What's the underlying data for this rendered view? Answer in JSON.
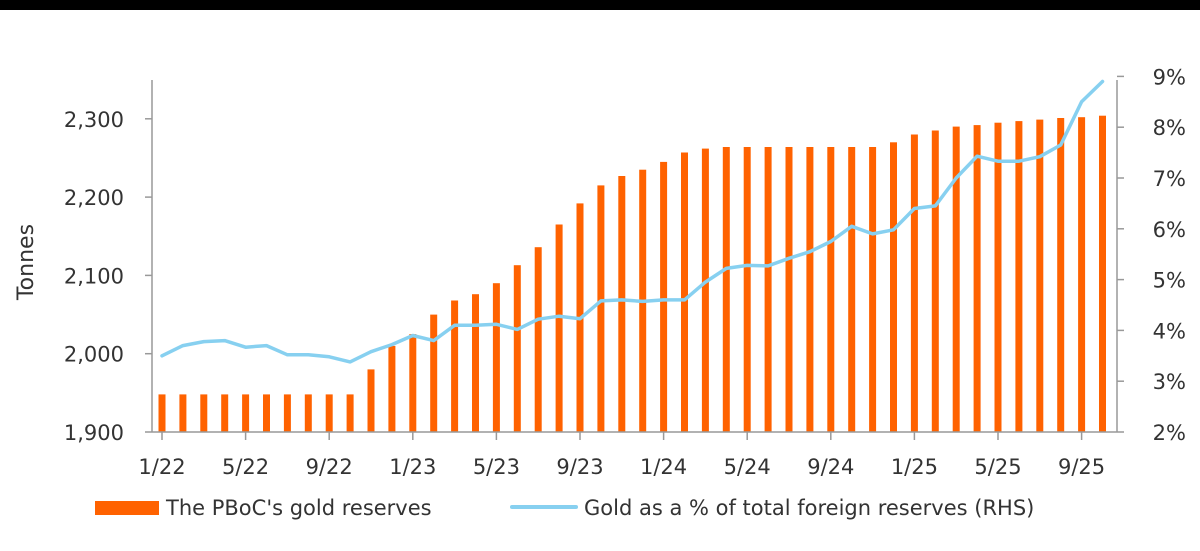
{
  "chart_data": {
    "type": "bar",
    "title": "",
    "xlabel": "",
    "ylabel": "Tonnes",
    "x_tick_labels": [
      "1/22",
      "5/22",
      "9/22",
      "1/23",
      "5/23",
      "9/23",
      "1/24",
      "5/24",
      "9/24",
      "1/25",
      "5/25",
      "9/25"
    ],
    "y_left": {
      "ticks": [
        "1,900",
        "2,000",
        "2,100",
        "2,200",
        "2,300"
      ],
      "ylim": [
        1900,
        2340
      ]
    },
    "y_right": {
      "ticks": [
        "2%",
        "3%",
        "4%",
        "5%",
        "6%",
        "7%",
        "8%",
        "9%"
      ],
      "ylim": [
        2,
        9
      ]
    },
    "grid": false,
    "legend_position": "bottom",
    "categories": [
      "1/22",
      "2/22",
      "3/22",
      "4/22",
      "5/22",
      "6/22",
      "7/22",
      "8/22",
      "9/22",
      "10/22",
      "11/22",
      "12/22",
      "1/23",
      "2/23",
      "3/23",
      "4/23",
      "5/23",
      "6/23",
      "7/23",
      "8/23",
      "9/23",
      "10/23",
      "11/23",
      "12/23",
      "1/24",
      "2/24",
      "3/24",
      "4/24",
      "5/24",
      "6/24",
      "7/24",
      "8/24",
      "9/24",
      "10/24",
      "11/24",
      "12/24",
      "1/25",
      "2/25",
      "3/25",
      "4/25",
      "5/25",
      "6/25",
      "7/25",
      "8/25",
      "9/25",
      "10/25"
    ],
    "series": [
      {
        "name": "The PBoC's gold reserves",
        "type": "bar",
        "axis": "left",
        "color": "#FF6200",
        "values": [
          1948,
          1948,
          1948,
          1948,
          1948,
          1948,
          1948,
          1948,
          1948,
          1948,
          1980,
          2010,
          2025,
          2050,
          2068,
          2076,
          2090,
          2113,
          2136,
          2165,
          2192,
          2215,
          2227,
          2235,
          2245,
          2257,
          2262,
          2264,
          2264,
          2264,
          2264,
          2264,
          2264,
          2264,
          2264,
          2270,
          2280,
          2285,
          2290,
          2292,
          2295,
          2297,
          2299,
          2301,
          2302,
          2304
        ]
      },
      {
        "name": "Gold as a % of total foreign reserves (RHS)",
        "type": "line",
        "axis": "right",
        "color": "#87D0F0",
        "values": [
          3.5,
          3.7,
          3.78,
          3.8,
          3.67,
          3.7,
          3.52,
          3.52,
          3.48,
          3.38,
          3.58,
          3.72,
          3.9,
          3.8,
          4.1,
          4.1,
          4.12,
          4.02,
          4.22,
          4.28,
          4.23,
          4.58,
          4.6,
          4.57,
          4.6,
          4.6,
          4.95,
          5.22,
          5.28,
          5.27,
          5.42,
          5.55,
          5.75,
          6.05,
          5.9,
          5.98,
          6.4,
          6.45,
          7.0,
          7.43,
          7.33,
          7.33,
          7.42,
          7.65,
          8.5,
          8.9
        ]
      }
    ]
  }
}
